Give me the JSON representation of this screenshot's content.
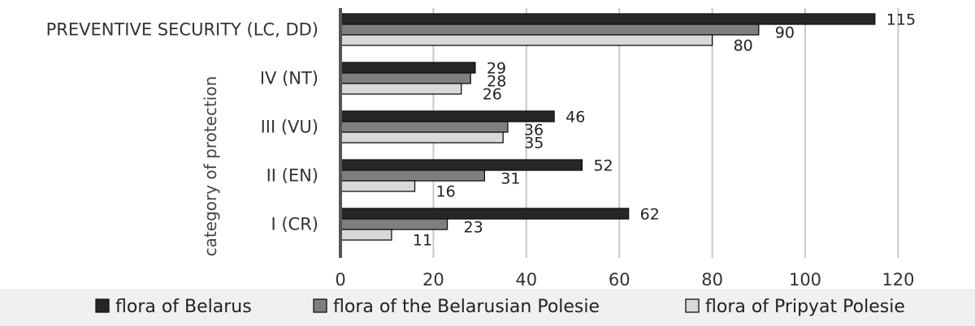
{
  "chart_data": {
    "type": "bar",
    "orientation": "horizontal",
    "title": "",
    "xlabel": "",
    "ylabel": "category of protection",
    "categories": [
      "PREVENTIVE SECURITY (LC, DD)",
      "IV (NT)",
      "III (VU)",
      "II (EN)",
      "I (CR)"
    ],
    "series": [
      {
        "name": "flora of Belarus",
        "values": [
          115,
          29,
          46,
          52,
          62
        ],
        "color": "#262626"
      },
      {
        "name": "flora of the Belarusian Polesie",
        "values": [
          90,
          28,
          36,
          31,
          23
        ],
        "color": "#7f7f7f"
      },
      {
        "name": "flora of Pripyat Polesie",
        "values": [
          80,
          26,
          35,
          16,
          11
        ],
        "color": "#d9d9d9"
      }
    ],
    "xlim": [
      0,
      120
    ],
    "xticks": [
      0,
      20,
      40,
      60,
      80,
      100,
      120
    ],
    "grid": "vertical",
    "legend_position": "bottom",
    "data_labels": true
  }
}
